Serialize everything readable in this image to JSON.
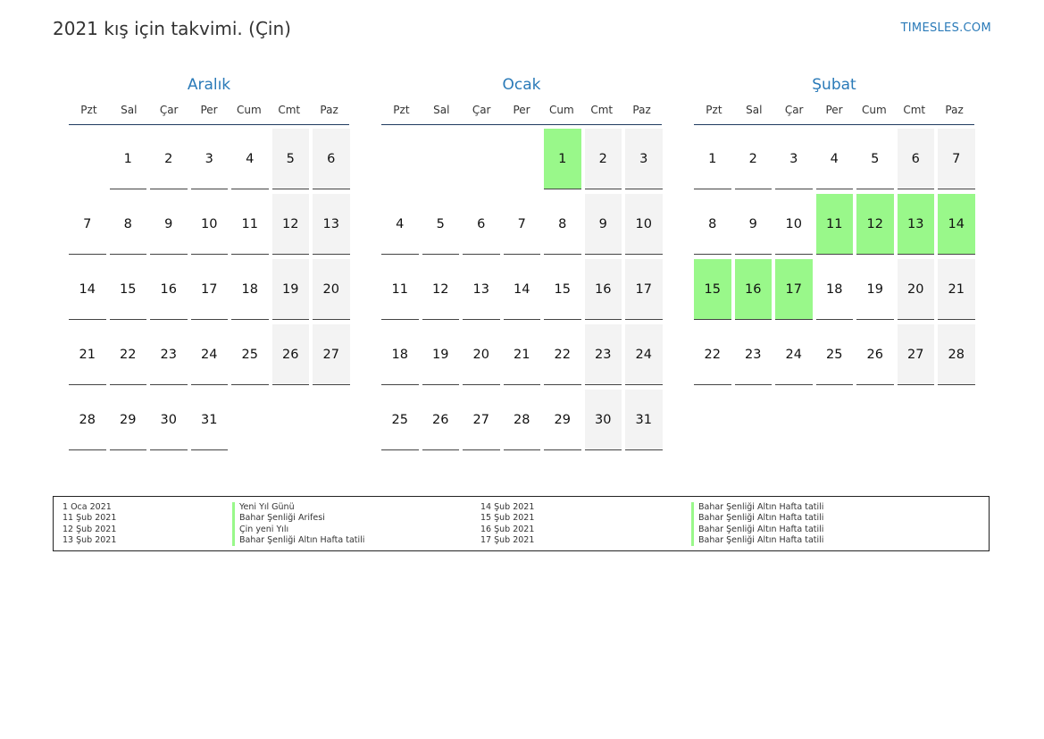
{
  "title": "2021 kış için takvimi. (Çin)",
  "site": "TIMESLES.COM",
  "weekdays": [
    "Pzt",
    "Sal",
    "Çar",
    "Per",
    "Cum",
    "Cmt",
    "Paz"
  ],
  "months": [
    {
      "name": "Aralık",
      "offset": 1,
      "days": 31,
      "holidays": []
    },
    {
      "name": "Ocak",
      "offset": 4,
      "days": 31,
      "holidays": [
        1
      ]
    },
    {
      "name": "Şubat",
      "offset": 0,
      "days": 28,
      "holidays": [
        11,
        12,
        13,
        14,
        15,
        16,
        17
      ]
    }
  ],
  "legend": [
    {
      "date": "1 Oca 2021",
      "name": "Yeni Yıl Günü"
    },
    {
      "date": "11 Şub 2021",
      "name": "Bahar Şenliği Arifesi"
    },
    {
      "date": "12 Şub 2021",
      "name": "Çin yeni Yılı"
    },
    {
      "date": "13 Şub 2021",
      "name": "Bahar Şenliği Altın Hafta tatili"
    },
    {
      "date": "14 Şub 2021",
      "name": "Bahar Şenliği Altın Hafta tatili"
    },
    {
      "date": "15 Şub 2021",
      "name": "Bahar Şenliği Altın Hafta tatili"
    },
    {
      "date": "16 Şub 2021",
      "name": "Bahar Şenliği Altın Hafta tatili"
    },
    {
      "date": "17 Şub 2021",
      "name": "Bahar Şenliği Altın Hafta tatili"
    }
  ],
  "colors": {
    "holiday": "#99f88a",
    "weekend": "#f3f3f3",
    "accent": "#2a7ab8"
  }
}
